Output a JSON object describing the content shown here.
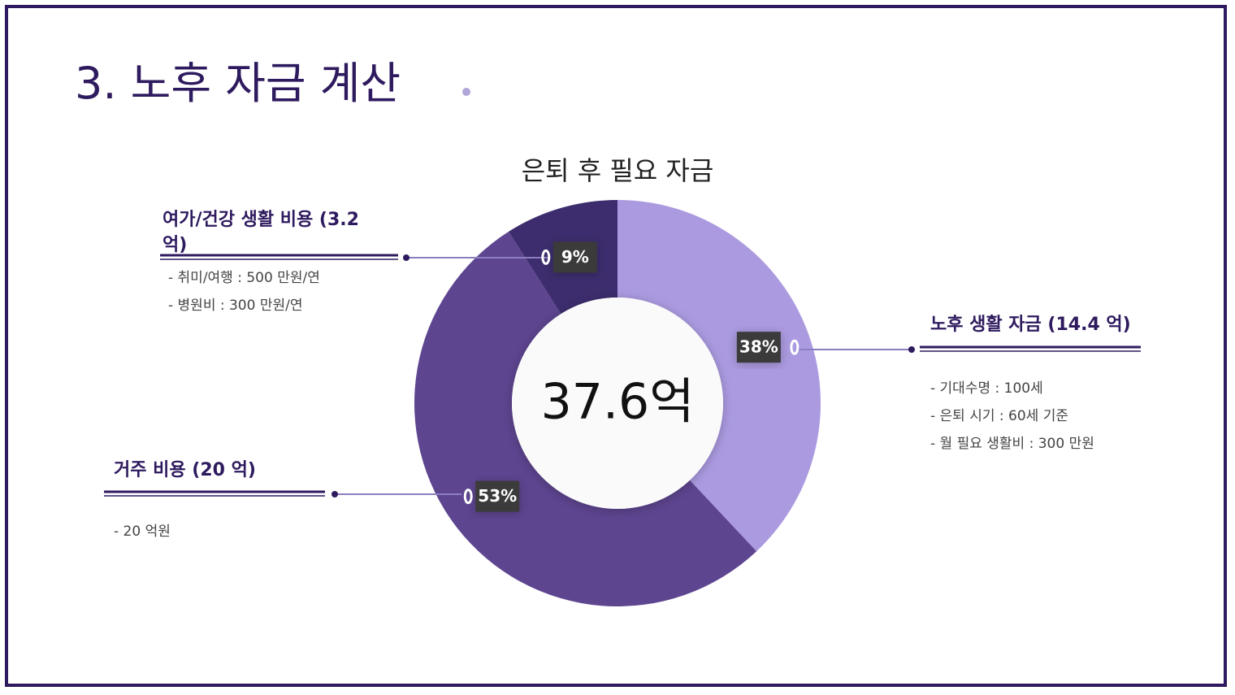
{
  "slide": {
    "title": "3. 노후 자금 계산"
  },
  "chart_data": {
    "type": "donut",
    "title": "은퇴 후 필요 자금",
    "center_label": "37.6억",
    "categories": [
      "노후 생활 자금",
      "거주 비용",
      "여가/건강 생활 비용"
    ],
    "values": [
      38,
      53,
      9
    ],
    "value_labels": [
      "38%",
      "53%",
      "9%"
    ],
    "colors": [
      "#ab9ae0",
      "#5e4590",
      "#3d2d6e"
    ],
    "annotations": [
      {
        "title": "노후 생활 자금 (14.4 억)",
        "lines": [
          "- 기대수명 : 100세",
          "- 은퇴 시기 : 60세 기준",
          "- 월 필요 생활비 : 300 만원"
        ]
      },
      {
        "title": "거주 비용 (20 억)",
        "lines": [
          "- 20 억원"
        ]
      },
      {
        "title": "여가/건강 생활 비용 (3.2 억)",
        "lines": [
          "- 취미/여행 : 500 만원/연",
          "- 병원비 : 300 만원/연"
        ]
      }
    ]
  }
}
